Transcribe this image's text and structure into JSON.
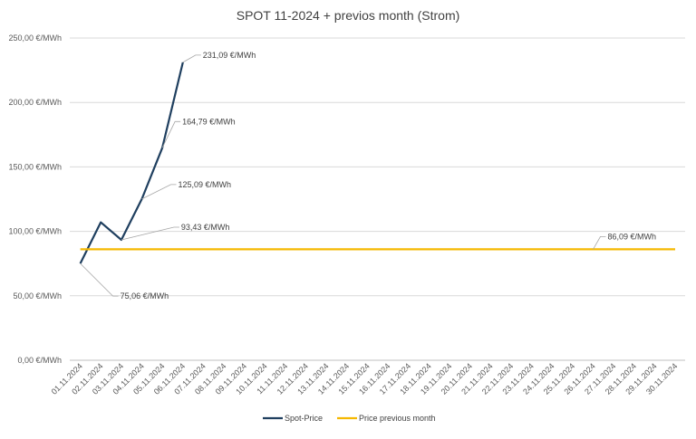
{
  "chart_data": {
    "type": "line",
    "title": "SPOT 11-2024 + previos month (Strom)",
    "xlabel": "",
    "ylabel": "",
    "ylim": [
      0,
      250
    ],
    "y_ticks": [
      "0,00 €/MWh",
      "50,00 €/MWh",
      "100,00 €/MWh",
      "150,00 €/MWh",
      "200,00 €/MWh",
      "250,00 €/MWh"
    ],
    "y_tick_values": [
      0,
      50,
      100,
      150,
      200,
      250
    ],
    "grid": true,
    "legend_position": "bottom",
    "categories": [
      "01.11.2024",
      "02.11.2024",
      "03.11.2024",
      "04.11.2024",
      "05.11.2024",
      "06.11.2024",
      "07.11.2024",
      "08.11.2024",
      "09.11.2024",
      "10.11.2024",
      "11.11.2024",
      "12.11.2024",
      "13.11.2024",
      "14.11.2024",
      "15.11.2024",
      "16.11.2024",
      "17.11.2024",
      "18.11.2024",
      "19.11.2024",
      "20.11.2024",
      "21.11.2024",
      "22.11.2024",
      "23.11.2024",
      "24.11.2024",
      "25.11.2024",
      "26.11.2024",
      "27.11.2024",
      "28.11.2024",
      "29.11.2024",
      "30.11.2024"
    ],
    "series": [
      {
        "name": "Spot-Price",
        "color": "#1f3f5f",
        "values": [
          75.06,
          107,
          93.43,
          125.09,
          164.79,
          231.09,
          null,
          null,
          null,
          null,
          null,
          null,
          null,
          null,
          null,
          null,
          null,
          null,
          null,
          null,
          null,
          null,
          null,
          null,
          null,
          null,
          null,
          null,
          null,
          null
        ]
      },
      {
        "name": "Price previous month",
        "color": "#f5b800",
        "values": [
          86.09,
          86.09,
          86.09,
          86.09,
          86.09,
          86.09,
          86.09,
          86.09,
          86.09,
          86.09,
          86.09,
          86.09,
          86.09,
          86.09,
          86.09,
          86.09,
          86.09,
          86.09,
          86.09,
          86.09,
          86.09,
          86.09,
          86.09,
          86.09,
          86.09,
          86.09,
          86.09,
          86.09,
          86.09,
          86.09
        ]
      }
    ],
    "data_labels": [
      {
        "series": 0,
        "index": 0,
        "text": "75,06 €/MWh"
      },
      {
        "series": 0,
        "index": 2,
        "text": "93,43 €/MWh"
      },
      {
        "series": 0,
        "index": 3,
        "text": "125,09 €/MWh"
      },
      {
        "series": 0,
        "index": 4,
        "text": "164,79 €/MWh"
      },
      {
        "series": 0,
        "index": 5,
        "text": "231,09 €/MWh"
      },
      {
        "series": 1,
        "index": 25,
        "text": "86,09 €/MWh"
      }
    ]
  }
}
